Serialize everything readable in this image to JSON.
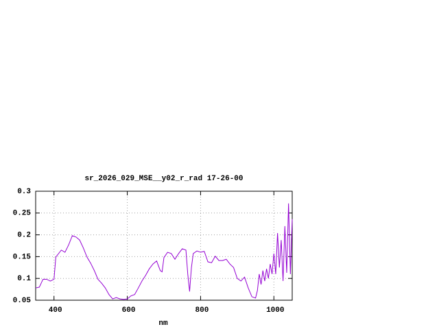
{
  "chart_data": {
    "type": "line",
    "title": "sr_2026_029_MSE__y02_r_rad 17-26-00",
    "x_label": "nm",
    "x": [
      350,
      360,
      370,
      380,
      390,
      400,
      405,
      420,
      430,
      440,
      450,
      460,
      470,
      480,
      490,
      500,
      510,
      520,
      530,
      540,
      550,
      560,
      570,
      580,
      590,
      600,
      610,
      620,
      630,
      640,
      650,
      660,
      670,
      680,
      690,
      695,
      700,
      710,
      720,
      730,
      740,
      750,
      760,
      765,
      770,
      775,
      780,
      790,
      800,
      810,
      820,
      830,
      840,
      850,
      860,
      870,
      880,
      890,
      900,
      910,
      920,
      930,
      940,
      950,
      955,
      960,
      965,
      970,
      975,
      980,
      985,
      990,
      995,
      1000,
      1005,
      1010,
      1015,
      1020,
      1025,
      1030,
      1035,
      1040,
      1045,
      1050
    ],
    "series": [
      {
        "color": "#9400d3",
        "values": [
          0.078,
          0.08,
          0.098,
          0.098,
          0.094,
          0.098,
          0.149,
          0.165,
          0.16,
          0.177,
          0.198,
          0.195,
          0.188,
          0.17,
          0.149,
          0.135,
          0.118,
          0.098,
          0.089,
          0.078,
          0.063,
          0.053,
          0.056,
          0.053,
          0.052,
          0.053,
          0.06,
          0.063,
          0.078,
          0.094,
          0.107,
          0.122,
          0.133,
          0.14,
          0.118,
          0.115,
          0.148,
          0.16,
          0.157,
          0.144,
          0.157,
          0.168,
          0.165,
          0.11,
          0.07,
          0.125,
          0.157,
          0.163,
          0.16,
          0.162,
          0.138,
          0.136,
          0.151,
          0.141,
          0.141,
          0.144,
          0.133,
          0.125,
          0.1,
          0.094,
          0.103,
          0.078,
          0.058,
          0.055,
          0.072,
          0.11,
          0.086,
          0.118,
          0.094,
          0.122,
          0.1,
          0.133,
          0.11,
          0.157,
          0.11,
          0.204,
          0.125,
          0.188,
          0.094,
          0.22,
          0.113,
          0.272,
          0.11,
          0.236
        ]
      }
    ],
    "xlim": [
      350,
      1050
    ],
    "xticks": [
      400,
      600,
      800,
      1000
    ],
    "ylim": [
      0.05,
      0.3
    ],
    "yticks": [
      0.05,
      0.1,
      0.15,
      0.2,
      0.25,
      0.3
    ],
    "grid": true
  }
}
